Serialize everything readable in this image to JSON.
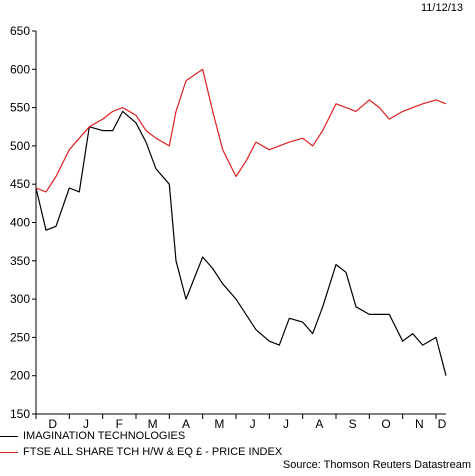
{
  "date": "11/12/13",
  "source": "Source: Thomson Reuters Datastream",
  "colors": {
    "series1": "#000000",
    "series2": "#e02020"
  },
  "chart_data": {
    "type": "line",
    "title": "",
    "xlabel": "",
    "ylabel": "",
    "ylim": [
      150,
      650
    ],
    "yticks": [
      150,
      200,
      250,
      300,
      350,
      400,
      450,
      500,
      550,
      600,
      650
    ],
    "grid": false,
    "legend_position": "bottom-left",
    "xlim": [
      0,
      12.3
    ],
    "xticks": [
      "D",
      "J",
      "F",
      "M",
      "A",
      "M",
      "J",
      "J",
      "A",
      "S",
      "O",
      "N",
      "D"
    ],
    "x": [
      0,
      0.3,
      0.6,
      1,
      1.3,
      1.6,
      2,
      2.3,
      2.6,
      3,
      3.3,
      3.6,
      4,
      4.2,
      4.5,
      5,
      5.3,
      5.6,
      6,
      6.3,
      6.6,
      7,
      7.3,
      7.6,
      8,
      8.3,
      8.6,
      9,
      9.3,
      9.6,
      10,
      10.3,
      10.6,
      11,
      11.3,
      11.6,
      12,
      12.3
    ],
    "series": [
      {
        "name": "IMAGINATION TECHNOLOGIES",
        "color": "#000000",
        "values": [
          445,
          390,
          395,
          445,
          440,
          525,
          520,
          520,
          545,
          530,
          505,
          470,
          450,
          350,
          300,
          355,
          340,
          320,
          300,
          280,
          260,
          245,
          240,
          275,
          270,
          255,
          290,
          345,
          335,
          290,
          280,
          280,
          280,
          245,
          255,
          240,
          250,
          200
        ]
      },
      {
        "name": "FTSE ALL SHARE TCH H/W & EQ £ - PRICE INDEX",
        "color": "#e02020",
        "values": [
          445,
          440,
          460,
          495,
          510,
          525,
          535,
          545,
          550,
          540,
          520,
          510,
          500,
          545,
          585,
          600,
          545,
          495,
          460,
          480,
          505,
          495,
          500,
          505,
          510,
          500,
          520,
          555,
          550,
          545,
          560,
          550,
          535,
          545,
          550,
          555,
          560,
          555
        ]
      }
    ]
  }
}
